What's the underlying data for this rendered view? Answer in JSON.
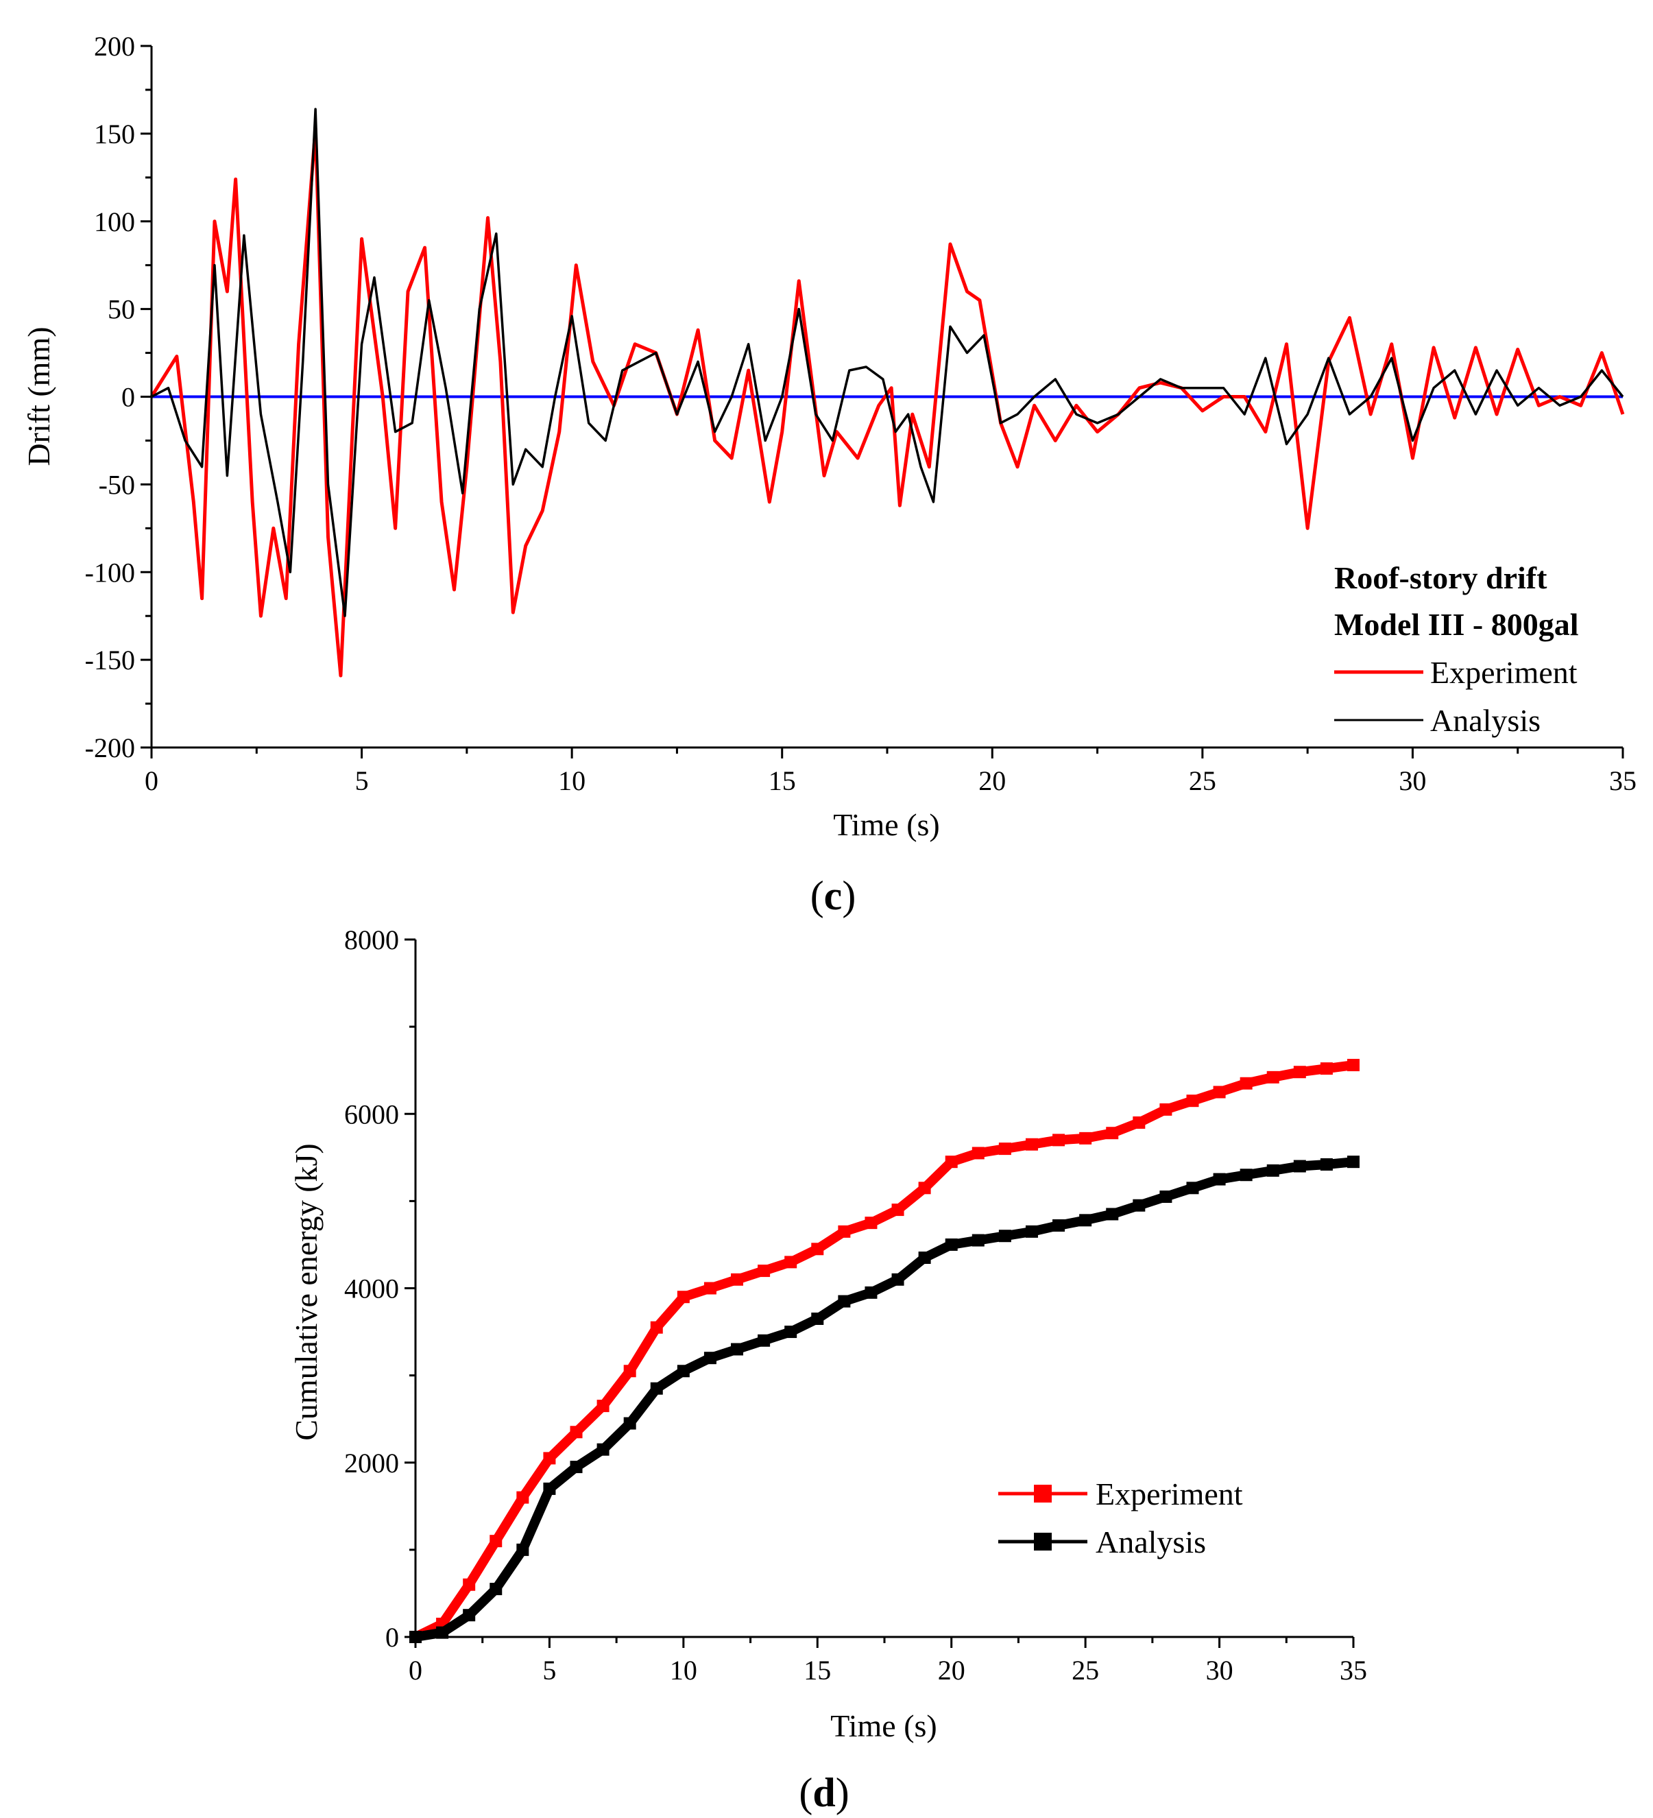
{
  "chart_data": [
    {
      "type": "line",
      "panel_label_prefix": "(",
      "panel_label_letter": "c",
      "panel_label_suffix": ")",
      "xlabel": "Time (s)",
      "ylabel": "Drift (mm)",
      "xlim": [
        0,
        35
      ],
      "ylim": [
        -200,
        200
      ],
      "xticks": [
        "0",
        "5",
        "10",
        "15",
        "20",
        "25",
        "30",
        "35"
      ],
      "yticks": [
        "-200",
        "-150",
        "-100",
        "-50",
        "0",
        "50",
        "100",
        "150",
        "200"
      ],
      "annotation_line1": "Roof-story drift",
      "annotation_line2": "Model III - 800gal",
      "baseline": {
        "y": 0,
        "color": "#0000ff"
      },
      "series": [
        {
          "name": "Experiment",
          "color": "#ff0000",
          "x": [
            0,
            0.6,
            1.0,
            1.2,
            1.5,
            1.8,
            2.0,
            2.4,
            2.6,
            2.9,
            3.2,
            3.5,
            3.9,
            4.2,
            4.5,
            5.0,
            5.5,
            5.8,
            6.1,
            6.5,
            6.9,
            7.2,
            7.5,
            8.0,
            8.3,
            8.6,
            8.9,
            9.3,
            9.7,
            10.1,
            10.5,
            11.0,
            11.5,
            12.0,
            12.5,
            13.0,
            13.4,
            13.8,
            14.2,
            14.7,
            15.0,
            15.4,
            16.0,
            16.3,
            16.8,
            17.3,
            17.6,
            17.8,
            18.1,
            18.5,
            19.0,
            19.4,
            19.7,
            20.2,
            20.6,
            21.0,
            21.5,
            22.0,
            22.5,
            23.0,
            23.5,
            24.0,
            24.5,
            25.0,
            25.5,
            26.0,
            26.5,
            27.0,
            27.5,
            28.0,
            28.5,
            29.0,
            29.5,
            30.0,
            30.5,
            31.0,
            31.5,
            32.0,
            32.5,
            33.0,
            33.5,
            34.0,
            34.5,
            35.0
          ],
          "y": [
            0,
            23,
            -60,
            -115,
            100,
            60,
            124,
            -60,
            -125,
            -75,
            -115,
            30,
            153,
            -80,
            -159,
            90,
            0,
            -75,
            60,
            85,
            -60,
            -110,
            -40,
            102,
            20,
            -123,
            -85,
            -65,
            -20,
            75,
            20,
            -5,
            30,
            25,
            -10,
            38,
            -25,
            -35,
            15,
            -60,
            -20,
            66,
            -45,
            -20,
            -35,
            -5,
            5,
            -62,
            -10,
            -40,
            87,
            60,
            55,
            -15,
            -40,
            -5,
            -25,
            -5,
            -20,
            -10,
            5,
            8,
            5,
            -8,
            0,
            0,
            -20,
            30,
            -75,
            20,
            45,
            -10,
            30,
            -35,
            28,
            -12,
            28,
            -10,
            27,
            -5,
            0,
            -5,
            25,
            -10
          ]
        },
        {
          "name": "Analysis",
          "color": "#000000",
          "x": [
            0,
            0.4,
            0.8,
            1.2,
            1.5,
            1.8,
            2.2,
            2.6,
            3.0,
            3.3,
            3.6,
            3.9,
            4.2,
            4.6,
            5.0,
            5.3,
            5.8,
            6.2,
            6.6,
            7.0,
            7.4,
            7.8,
            8.2,
            8.6,
            8.9,
            9.3,
            9.6,
            10.0,
            10.4,
            10.8,
            11.2,
            11.6,
            12.0,
            12.5,
            13.0,
            13.4,
            13.8,
            14.2,
            14.6,
            15.0,
            15.4,
            15.8,
            16.2,
            16.6,
            17.0,
            17.4,
            17.7,
            18.0,
            18.3,
            18.6,
            19.0,
            19.4,
            19.8,
            20.2,
            20.6,
            21.0,
            21.5,
            22.0,
            22.5,
            23.0,
            23.5,
            24.0,
            24.5,
            25.0,
            25.5,
            26.0,
            26.5,
            27.0,
            27.5,
            28.0,
            28.5,
            29.0,
            29.5,
            30.0,
            30.5,
            31.0,
            31.5,
            32.0,
            32.5,
            33.0,
            33.5,
            34.0,
            34.5,
            35.0
          ],
          "y": [
            0,
            5,
            -25,
            -40,
            75,
            -45,
            92,
            -10,
            -60,
            -100,
            20,
            164,
            -50,
            -125,
            30,
            68,
            -20,
            -15,
            55,
            5,
            -55,
            50,
            93,
            -50,
            -30,
            -40,
            0,
            46,
            -15,
            -25,
            15,
            20,
            25,
            -10,
            20,
            -20,
            0,
            30,
            -25,
            0,
            50,
            -10,
            -25,
            15,
            17,
            10,
            -20,
            -10,
            -40,
            -60,
            40,
            25,
            35,
            -15,
            -10,
            0,
            10,
            -10,
            -15,
            -10,
            0,
            10,
            5,
            5,
            5,
            -10,
            22,
            -27,
            -10,
            22,
            -10,
            0,
            22,
            -25,
            5,
            15,
            -10,
            15,
            -5,
            5,
            -5,
            0,
            15,
            0
          ]
        }
      ]
    },
    {
      "type": "line",
      "panel_label_prefix": "(",
      "panel_label_letter": "d",
      "panel_label_suffix": ")",
      "xlabel": "Time (s)",
      "ylabel": "Cumulative energy (kJ)",
      "xlim": [
        0,
        35
      ],
      "ylim": [
        0,
        8000
      ],
      "xticks": [
        "0",
        "5",
        "10",
        "15",
        "20",
        "25",
        "30",
        "35"
      ],
      "yticks": [
        "0",
        "2000",
        "4000",
        "6000",
        "8000"
      ],
      "series": [
        {
          "name": "Experiment",
          "color": "#ff0000",
          "marker": "square",
          "x": [
            0,
            1,
            2,
            3,
            4,
            5,
            6,
            7,
            8,
            9,
            10,
            11,
            12,
            13,
            14,
            15,
            16,
            17,
            18,
            19,
            20,
            21,
            22,
            23,
            24,
            25,
            26,
            27,
            28,
            29,
            30,
            31,
            32,
            33,
            34,
            35
          ],
          "y": [
            0,
            150,
            600,
            1100,
            1600,
            2050,
            2350,
            2650,
            3050,
            3550,
            3900,
            4000,
            4100,
            4200,
            4300,
            4450,
            4650,
            4750,
            4900,
            5150,
            5450,
            5550,
            5600,
            5650,
            5700,
            5720,
            5780,
            5900,
            6050,
            6150,
            6250,
            6350,
            6420,
            6480,
            6520,
            6560
          ]
        },
        {
          "name": "Analysis",
          "color": "#000000",
          "marker": "square",
          "x": [
            0,
            1,
            2,
            3,
            4,
            5,
            6,
            7,
            8,
            9,
            10,
            11,
            12,
            13,
            14,
            15,
            16,
            17,
            18,
            19,
            20,
            21,
            22,
            23,
            24,
            25,
            26,
            27,
            28,
            29,
            30,
            31,
            32,
            33,
            34,
            35
          ],
          "y": [
            0,
            50,
            250,
            550,
            1000,
            1700,
            1950,
            2150,
            2450,
            2850,
            3050,
            3200,
            3300,
            3400,
            3500,
            3650,
            3850,
            3950,
            4100,
            4350,
            4500,
            4550,
            4600,
            4650,
            4720,
            4780,
            4850,
            4950,
            5050,
            5150,
            5250,
            5300,
            5350,
            5400,
            5420,
            5450
          ]
        }
      ]
    }
  ]
}
